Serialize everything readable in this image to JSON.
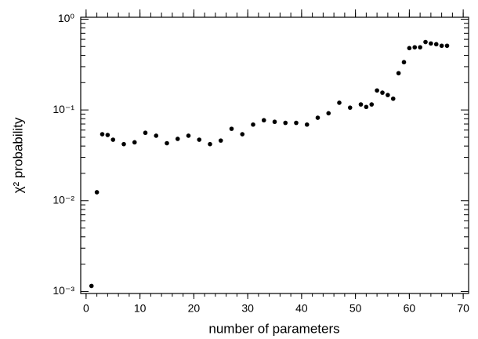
{
  "chart_data": {
    "type": "scatter",
    "x_label": "number of parameters",
    "y_label": "χ² probability",
    "x": [
      1,
      2,
      3,
      4,
      5,
      7,
      9,
      11,
      13,
      15,
      17,
      19,
      21,
      23,
      25,
      27,
      29,
      31,
      33,
      35,
      37,
      39,
      41,
      43,
      45,
      47,
      49,
      51,
      52,
      53,
      54,
      55,
      56,
      57,
      58,
      59,
      60,
      61,
      62,
      63,
      64,
      65,
      66,
      67
    ],
    "values": [
      0.00115,
      0.0124,
      0.054,
      0.053,
      0.047,
      0.042,
      0.044,
      0.056,
      0.052,
      0.043,
      0.048,
      0.052,
      0.047,
      0.042,
      0.046,
      0.062,
      0.054,
      0.069,
      0.077,
      0.074,
      0.072,
      0.072,
      0.069,
      0.082,
      0.092,
      0.12,
      0.106,
      0.115,
      0.108,
      0.115,
      0.164,
      0.155,
      0.146,
      0.133,
      0.254,
      0.336,
      0.48,
      0.49,
      0.49,
      0.56,
      0.54,
      0.53,
      0.51,
      0.51
    ],
    "color": "#000000",
    "xlim": [
      -1,
      71
    ],
    "xticks": [
      0,
      10,
      20,
      30,
      40,
      50,
      60,
      70
    ],
    "ylim": [
      0.00095,
      1.05
    ],
    "yticks": [
      {
        "value": 0.001,
        "label": "10⁻³"
      },
      {
        "value": 0.01,
        "label": "10⁻²"
      },
      {
        "value": 0.1,
        "label": "10⁻¹"
      },
      {
        "value": 1,
        "label": "10⁰"
      }
    ],
    "log_y": true,
    "grid": false
  }
}
